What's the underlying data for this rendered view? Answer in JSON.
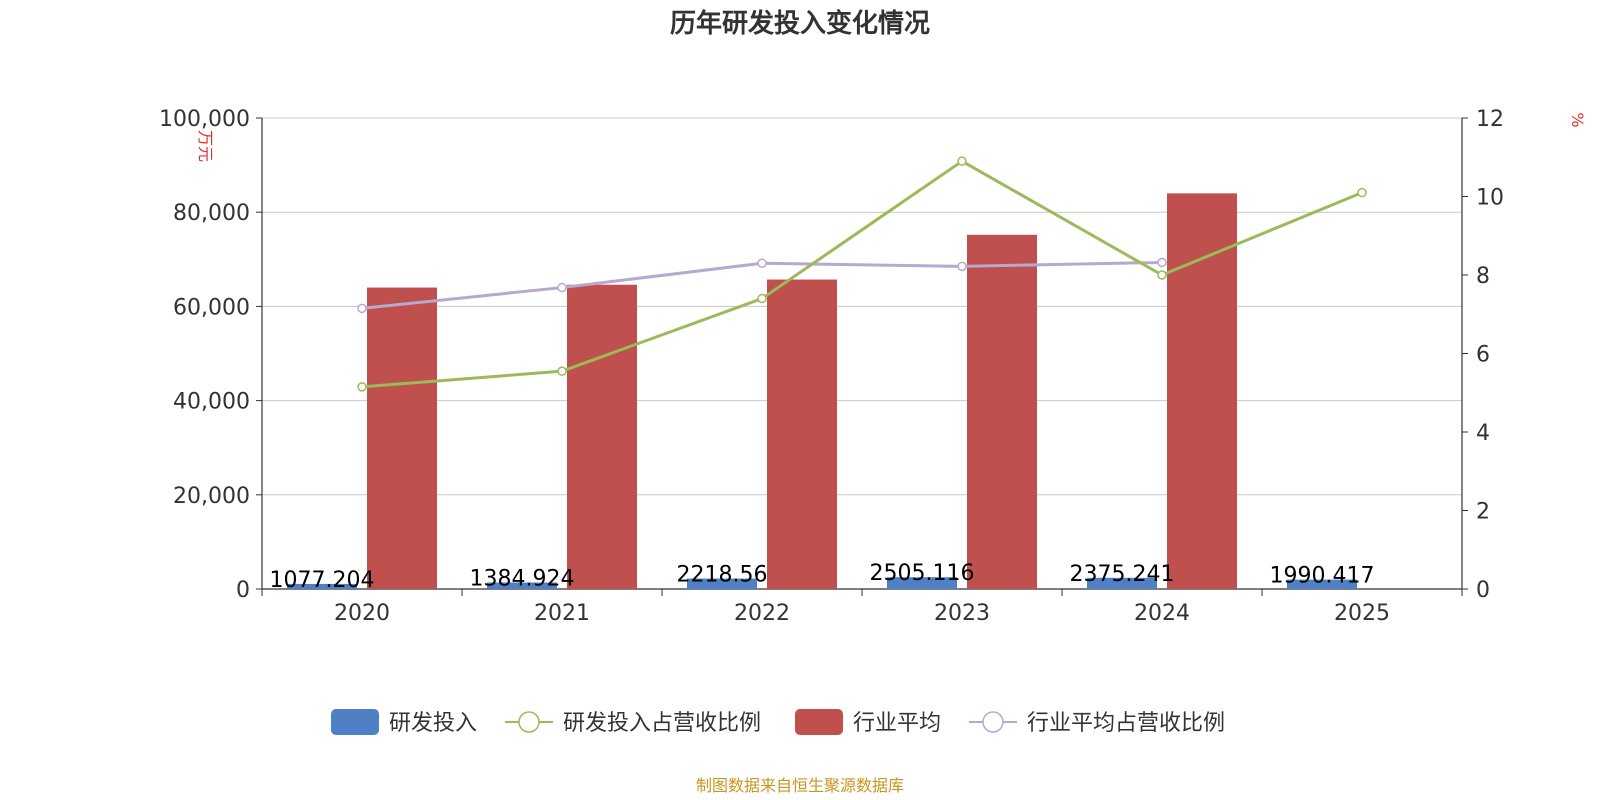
{
  "colors": {
    "rd": "#4f7fc4",
    "rd_ratio": "#9bbb59",
    "industry": "#c0504d",
    "industry_ratio": "#b7a8d0",
    "grid": "#c8c8c8",
    "axis": "#333333",
    "unit": "#e03030",
    "source": "#c8961e"
  },
  "source_text": "制图数据来自恒生聚源数据库",
  "chart_data": {
    "type": "bar",
    "title": "历年研发投入变化情况",
    "categories": [
      "2020",
      "2021",
      "2022",
      "2023",
      "2024",
      "2025"
    ],
    "y_left": {
      "unit": "万元",
      "min": 0,
      "max": 100000,
      "ticks": [
        0,
        20000,
        40000,
        60000,
        80000,
        100000
      ],
      "tick_labels": [
        "0",
        "20,000",
        "40,000",
        "60,000",
        "80,000",
        "100,000"
      ]
    },
    "y_right": {
      "unit": "%",
      "min": 0,
      "max": 12,
      "ticks": [
        0,
        2,
        4,
        6,
        8,
        10,
        12
      ],
      "tick_labels": [
        "0",
        "2",
        "4",
        "6",
        "8",
        "10",
        "12"
      ]
    },
    "grid": true,
    "legend_position": "bottom",
    "series": [
      {
        "name": "研发投入",
        "kind": "bar",
        "axis": "left",
        "values": [
          1077.204,
          1384.924,
          2218.56,
          2505.116,
          2375.241,
          1990.417
        ],
        "labels": [
          "1077.204",
          "1384.924",
          "2218.56",
          "2505.116",
          "2375.241",
          "1990.417"
        ]
      },
      {
        "name": "研发投入占营收比例",
        "kind": "line",
        "axis": "right",
        "values": [
          5.15,
          5.55,
          7.4,
          10.9,
          8.0,
          10.1
        ]
      },
      {
        "name": "行业平均",
        "kind": "bar",
        "axis": "left",
        "values": [
          64000,
          64600,
          65700,
          75200,
          84000,
          null
        ]
      },
      {
        "name": "行业平均占营收比例",
        "kind": "line",
        "axis": "right",
        "values": [
          7.15,
          7.68,
          8.3,
          8.22,
          8.32,
          null
        ]
      }
    ]
  }
}
